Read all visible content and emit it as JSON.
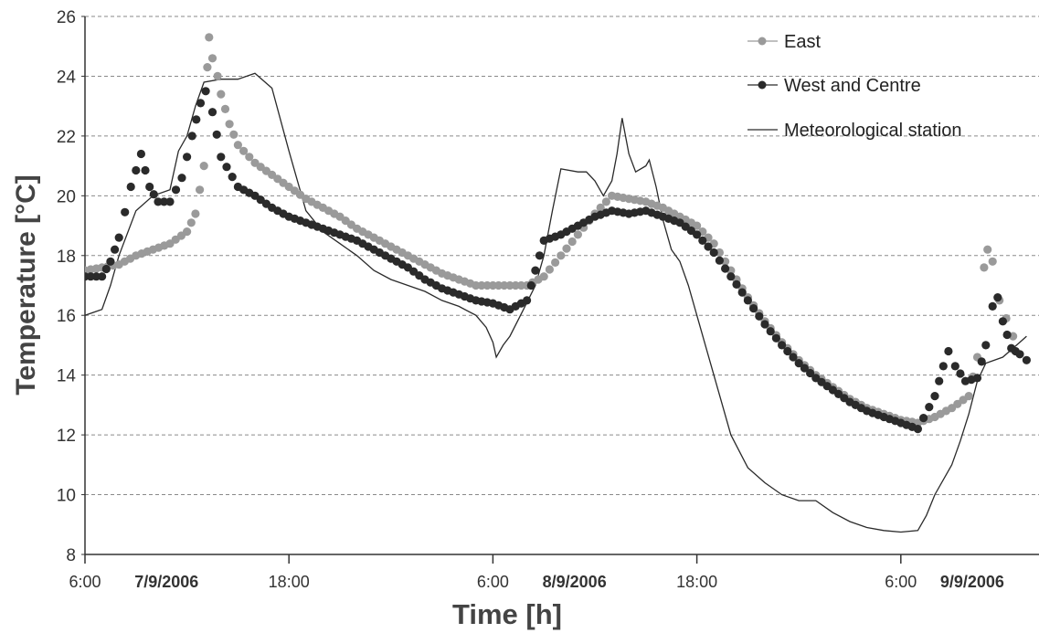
{
  "chart_data": {
    "type": "line",
    "ylabel": "Temperature [°C]",
    "xlabel": "Time [h]",
    "ylim": [
      8,
      26
    ],
    "yticks": [
      8,
      10,
      12,
      14,
      16,
      18,
      20,
      22,
      24,
      26
    ],
    "xlim": [
      6,
      58
    ],
    "xticks": [
      {
        "x": 6,
        "label": "6:00"
      },
      {
        "x": 18,
        "label": "18:00"
      },
      {
        "x": 30,
        "label": "6:00"
      },
      {
        "x": 42,
        "label": "18:00"
      },
      {
        "x": 54,
        "label": "6:00"
      }
    ],
    "date_labels": [
      {
        "x": 10.8,
        "label": "7/9/2006"
      },
      {
        "x": 34.8,
        "label": "8/9/2006"
      },
      {
        "x": 58.2,
        "label": "9/9/2006"
      }
    ],
    "grid": "horizontal-dashed",
    "legend_position": "top-right",
    "series": [
      {
        "name": "East",
        "color": "#9a9a9a",
        "marker": "circle",
        "points": [
          [
            6,
            17.5
          ],
          [
            7,
            17.6
          ],
          [
            8,
            17.7
          ],
          [
            9,
            18.0
          ],
          [
            10,
            18.2
          ],
          [
            11,
            18.4
          ],
          [
            12,
            18.8
          ],
          [
            12.5,
            19.4
          ],
          [
            13,
            21.0
          ],
          [
            13.2,
            24.3
          ],
          [
            13.3,
            25.3
          ],
          [
            13.5,
            24.6
          ],
          [
            13.8,
            24.0
          ],
          [
            14,
            23.4
          ],
          [
            14.5,
            22.4
          ],
          [
            15,
            21.7
          ],
          [
            16,
            21.1
          ],
          [
            17,
            20.7
          ],
          [
            18,
            20.3
          ],
          [
            19,
            19.9
          ],
          [
            20,
            19.6
          ],
          [
            21,
            19.3
          ],
          [
            22,
            18.9
          ],
          [
            23,
            18.6
          ],
          [
            24,
            18.3
          ],
          [
            25,
            18.0
          ],
          [
            26,
            17.7
          ],
          [
            27,
            17.4
          ],
          [
            28,
            17.2
          ],
          [
            29,
            17.0
          ],
          [
            30,
            17.0
          ],
          [
            31,
            17.0
          ],
          [
            32,
            17.0
          ],
          [
            33,
            17.3
          ],
          [
            34,
            18.0
          ],
          [
            35,
            18.7
          ],
          [
            36,
            19.4
          ],
          [
            37,
            20.0
          ],
          [
            38,
            19.9
          ],
          [
            39,
            19.8
          ],
          [
            40,
            19.6
          ],
          [
            41,
            19.3
          ],
          [
            42,
            19.0
          ],
          [
            43,
            18.4
          ],
          [
            44,
            17.5
          ],
          [
            45,
            16.6
          ],
          [
            46,
            15.8
          ],
          [
            47,
            15.1
          ],
          [
            48,
            14.5
          ],
          [
            49,
            14.0
          ],
          [
            50,
            13.6
          ],
          [
            51,
            13.2
          ],
          [
            52,
            12.9
          ],
          [
            53,
            12.7
          ],
          [
            54,
            12.5
          ],
          [
            55,
            12.4
          ],
          [
            56,
            12.6
          ],
          [
            57,
            12.9
          ],
          [
            58,
            13.3
          ],
          [
            58.5,
            14.6
          ],
          [
            58.9,
            17.6
          ],
          [
            59.1,
            18.2
          ],
          [
            59.4,
            17.8
          ],
          [
            59.8,
            16.5
          ],
          [
            60.2,
            15.9
          ],
          [
            60.6,
            15.3
          ]
        ]
      },
      {
        "name": "West and Centre",
        "color": "#2a2a2a",
        "marker": "circle",
        "points": [
          [
            6,
            17.3
          ],
          [
            7,
            17.3
          ],
          [
            7.5,
            17.8
          ],
          [
            8,
            18.6
          ],
          [
            8.7,
            20.3
          ],
          [
            9.3,
            21.4
          ],
          [
            9.8,
            20.3
          ],
          [
            10.3,
            19.8
          ],
          [
            11,
            19.8
          ],
          [
            11.7,
            20.6
          ],
          [
            12.3,
            22.0
          ],
          [
            12.8,
            23.1
          ],
          [
            13.1,
            23.5
          ],
          [
            13.5,
            22.8
          ],
          [
            14,
            21.3
          ],
          [
            15,
            20.3
          ],
          [
            16,
            20.0
          ],
          [
            17,
            19.6
          ],
          [
            18,
            19.3
          ],
          [
            19,
            19.1
          ],
          [
            20,
            18.9
          ],
          [
            21,
            18.7
          ],
          [
            22,
            18.5
          ],
          [
            23,
            18.2
          ],
          [
            24,
            17.9
          ],
          [
            25,
            17.6
          ],
          [
            26,
            17.2
          ],
          [
            27,
            16.9
          ],
          [
            28,
            16.7
          ],
          [
            29,
            16.5
          ],
          [
            30,
            16.4
          ],
          [
            31,
            16.2
          ],
          [
            32,
            16.5
          ],
          [
            32.5,
            17.5
          ],
          [
            33,
            18.5
          ],
          [
            34,
            18.7
          ],
          [
            35,
            19.0
          ],
          [
            36,
            19.3
          ],
          [
            37,
            19.5
          ],
          [
            38,
            19.4
          ],
          [
            39,
            19.5
          ],
          [
            40,
            19.3
          ],
          [
            41,
            19.1
          ],
          [
            42,
            18.7
          ],
          [
            43,
            18.1
          ],
          [
            44,
            17.3
          ],
          [
            45,
            16.5
          ],
          [
            46,
            15.7
          ],
          [
            47,
            15.0
          ],
          [
            48,
            14.4
          ],
          [
            49,
            13.9
          ],
          [
            50,
            13.5
          ],
          [
            51,
            13.1
          ],
          [
            52,
            12.8
          ],
          [
            53,
            12.6
          ],
          [
            54,
            12.4
          ],
          [
            55,
            12.2
          ],
          [
            56,
            13.3
          ],
          [
            56.5,
            14.3
          ],
          [
            56.8,
            14.8
          ],
          [
            57.2,
            14.3
          ],
          [
            57.8,
            13.8
          ],
          [
            58.5,
            13.9
          ],
          [
            59,
            15.0
          ],
          [
            59.4,
            16.3
          ],
          [
            59.7,
            16.6
          ],
          [
            60,
            15.8
          ],
          [
            60.5,
            14.9
          ],
          [
            61,
            14.7
          ],
          [
            61.4,
            14.5
          ]
        ]
      },
      {
        "name": "Meteorological station",
        "color": "#2a2a2a",
        "marker": "none",
        "points": [
          [
            6,
            16.0
          ],
          [
            7,
            16.2
          ],
          [
            7.5,
            17.0
          ],
          [
            8,
            18.0
          ],
          [
            9,
            19.5
          ],
          [
            10,
            20.0
          ],
          [
            11,
            20.2
          ],
          [
            11.5,
            21.5
          ],
          [
            12,
            22.0
          ],
          [
            12.5,
            23.0
          ],
          [
            13,
            23.8
          ],
          [
            14,
            23.9
          ],
          [
            15,
            23.9
          ],
          [
            16,
            24.1
          ],
          [
            17,
            23.6
          ],
          [
            18,
            21.5
          ],
          [
            19,
            19.5
          ],
          [
            20,
            18.8
          ],
          [
            21,
            18.4
          ],
          [
            22,
            18.0
          ],
          [
            23,
            17.5
          ],
          [
            24,
            17.2
          ],
          [
            25,
            17.0
          ],
          [
            26,
            16.8
          ],
          [
            27,
            16.5
          ],
          [
            28,
            16.3
          ],
          [
            29,
            16.0
          ],
          [
            29.6,
            15.6
          ],
          [
            30,
            15.1
          ],
          [
            30.2,
            14.6
          ],
          [
            30.6,
            15.0
          ],
          [
            31,
            15.3
          ],
          [
            31.8,
            16.2
          ],
          [
            32.5,
            17.0
          ],
          [
            33,
            18.0
          ],
          [
            33.5,
            19.5
          ],
          [
            34,
            20.9
          ],
          [
            35,
            20.8
          ],
          [
            35.5,
            20.8
          ],
          [
            36,
            20.5
          ],
          [
            36.5,
            20.0
          ],
          [
            37,
            20.5
          ],
          [
            37.3,
            21.4
          ],
          [
            37.6,
            22.6
          ],
          [
            38,
            21.4
          ],
          [
            38.4,
            20.8
          ],
          [
            39,
            21.0
          ],
          [
            39.2,
            21.2
          ],
          [
            39.6,
            20.3
          ],
          [
            40,
            19.2
          ],
          [
            40.5,
            18.2
          ],
          [
            41,
            17.8
          ],
          [
            41.5,
            17.0
          ],
          [
            42,
            16.0
          ],
          [
            43,
            14.0
          ],
          [
            44,
            12.0
          ],
          [
            45,
            10.9
          ],
          [
            46,
            10.4
          ],
          [
            47,
            10.0
          ],
          [
            48,
            9.8
          ],
          [
            49,
            9.8
          ],
          [
            50,
            9.4
          ],
          [
            51,
            9.1
          ],
          [
            52,
            8.9
          ],
          [
            53,
            8.8
          ],
          [
            54,
            8.75
          ],
          [
            55,
            8.8
          ],
          [
            55.5,
            9.3
          ],
          [
            56,
            10.0
          ],
          [
            57,
            11.0
          ],
          [
            57.5,
            11.8
          ],
          [
            58,
            12.7
          ],
          [
            58.5,
            13.8
          ],
          [
            59,
            14.4
          ],
          [
            60,
            14.6
          ],
          [
            61,
            15.1
          ],
          [
            61.4,
            15.3
          ]
        ]
      }
    ]
  }
}
